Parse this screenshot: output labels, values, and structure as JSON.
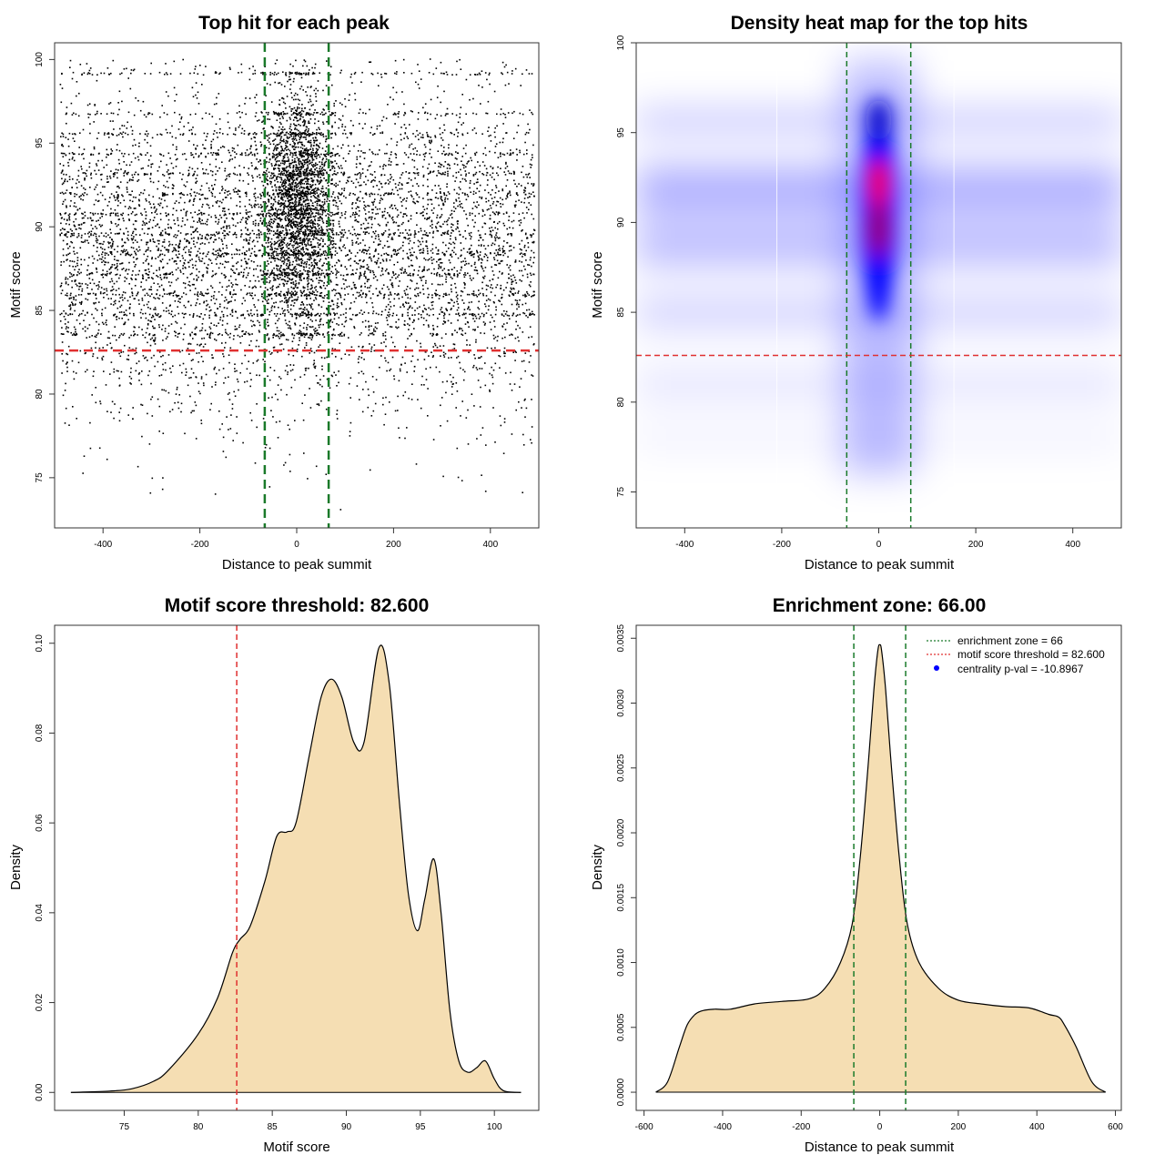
{
  "chart_data": [
    {
      "type": "scatter",
      "title": "Top hit for each peak",
      "xlabel": "Distance to peak summit",
      "ylabel": "Motif score",
      "xlim": [
        -500,
        500
      ],
      "ylim": [
        72,
        101
      ],
      "xticks": [
        -400,
        -200,
        0,
        200,
        400
      ],
      "yticks": [
        75,
        80,
        85,
        90,
        95,
        100
      ],
      "n_points": 9000,
      "density_note": "points dense near x=0, bulk between scores 82 and 96; horizontal streaks at common score values",
      "hlines": [
        {
          "y": 82.6,
          "color": "#e03030",
          "style": "dashed"
        }
      ],
      "vlines": [
        {
          "x": -66,
          "color": "#1a7a2a",
          "style": "dashed"
        },
        {
          "x": 66,
          "color": "#1a7a2a",
          "style": "dashed"
        }
      ]
    },
    {
      "type": "heatmap",
      "title": "Density heat map for the top hits",
      "xlabel": "Distance to peak summit",
      "ylabel": "Motif score",
      "xlim": [
        -500,
        500
      ],
      "ylim": [
        73,
        100
      ],
      "xticks": [
        -400,
        -200,
        0,
        200,
        400
      ],
      "yticks": [
        75,
        80,
        85,
        90,
        95,
        100
      ],
      "peak": {
        "x": 0,
        "y": 92.2
      },
      "secondary_peaks": [
        {
          "x": 0,
          "y": 95.7
        },
        {
          "x": 0,
          "y": 89.6
        }
      ],
      "colormap": [
        "#ffffff",
        "#0000ff",
        "#ff0000"
      ],
      "hlines": [
        {
          "y": 82.6,
          "color": "#e03030",
          "style": "dashed"
        }
      ],
      "vlines": [
        {
          "x": -66,
          "color": "#1a7a2a",
          "style": "dashed"
        },
        {
          "x": 66,
          "color": "#1a7a2a",
          "style": "dashed"
        }
      ]
    },
    {
      "type": "area",
      "title": "Motif score threshold: 82.600",
      "xlabel": "Motif score",
      "ylabel": "Density",
      "xlim": [
        70.3,
        103
      ],
      "ylim": [
        -0.004,
        0.104
      ],
      "xticks": [
        75,
        80,
        85,
        90,
        95,
        100
      ],
      "yticks": [
        0.0,
        0.02,
        0.04,
        0.06,
        0.08,
        0.1
      ],
      "ytick_labels": [
        "0.00",
        "0.02",
        "0.04",
        "0.06",
        "0.08",
        "0.10"
      ],
      "fill": "#f5deb3",
      "x": [
        71.4,
        74,
        75.5,
        77,
        78,
        80,
        81.3,
        82.3,
        82.8,
        83.5,
        84.5,
        85.3,
        86,
        86.6,
        87.5,
        88.3,
        89,
        89.7,
        90.5,
        91.2,
        92.2,
        92.9,
        93.6,
        94.2,
        94.8,
        95.3,
        95.9,
        96.4,
        97,
        97.6,
        98.2,
        98.8,
        99.4,
        100,
        100.6,
        101.8
      ],
      "y": [
        0.0,
        0.0003,
        0.0008,
        0.0025,
        0.005,
        0.013,
        0.021,
        0.031,
        0.034,
        0.037,
        0.047,
        0.057,
        0.058,
        0.06,
        0.075,
        0.088,
        0.092,
        0.088,
        0.078,
        0.078,
        0.099,
        0.091,
        0.064,
        0.044,
        0.036,
        0.043,
        0.052,
        0.04,
        0.018,
        0.007,
        0.0045,
        0.0055,
        0.007,
        0.003,
        0.0004,
        0.0
      ],
      "vlines": [
        {
          "x": 82.6,
          "color": "#e03030",
          "style": "dashed"
        }
      ]
    },
    {
      "type": "area",
      "title": "Enrichment zone: 66.00",
      "xlabel": "Distance to peak summit",
      "ylabel": "Density",
      "xlim": [
        -620,
        615
      ],
      "ylim": [
        -0.00014,
        0.0036
      ],
      "xticks": [
        -600,
        -400,
        -200,
        0,
        200,
        400,
        600
      ],
      "yticks": [
        0.0,
        0.0005,
        0.001,
        0.0015,
        0.002,
        0.0025,
        0.003,
        0.0035
      ],
      "ytick_labels": [
        "0.0000",
        "0.0005",
        "0.0010",
        "0.0015",
        "0.0020",
        "0.0025",
        "0.0030",
        "0.0035"
      ],
      "fill": "#f5deb3",
      "x": [
        -570,
        -540,
        -510,
        -490,
        -470,
        -450,
        -420,
        -380,
        -320,
        -250,
        -180,
        -140,
        -100,
        -70,
        -50,
        -30,
        -15,
        -5,
        0,
        5,
        15,
        30,
        50,
        70,
        100,
        150,
        200,
        260,
        320,
        380,
        430,
        455,
        470,
        500,
        540,
        575
      ],
      "y": [
        0.0,
        8e-05,
        0.00035,
        0.00052,
        0.0006,
        0.00063,
        0.00064,
        0.00064,
        0.00068,
        0.0007,
        0.00072,
        0.0008,
        0.001,
        0.0013,
        0.0018,
        0.0025,
        0.0031,
        0.0034,
        0.00345,
        0.0034,
        0.0031,
        0.0025,
        0.0018,
        0.0013,
        0.001,
        0.0008,
        0.00071,
        0.00068,
        0.00066,
        0.00065,
        0.0006,
        0.00058,
        0.00052,
        0.00035,
        8e-05,
        0.0
      ],
      "vlines": [
        {
          "x": -66,
          "color": "#1a7a2a",
          "style": "dashed"
        },
        {
          "x": 66,
          "color": "#1a7a2a",
          "style": "dashed"
        }
      ],
      "legend": {
        "placement": "top-right",
        "entries": [
          {
            "label": "enrichment zone = 66",
            "color": "#1a7a2a",
            "kind": "dotted-line"
          },
          {
            "label": "motif score threshold = 82.600",
            "color": "#e03030",
            "kind": "dotted-line"
          },
          {
            "label": "centrality p-val = -10.8967",
            "color": "#0000ff",
            "kind": "point"
          }
        ]
      }
    }
  ]
}
